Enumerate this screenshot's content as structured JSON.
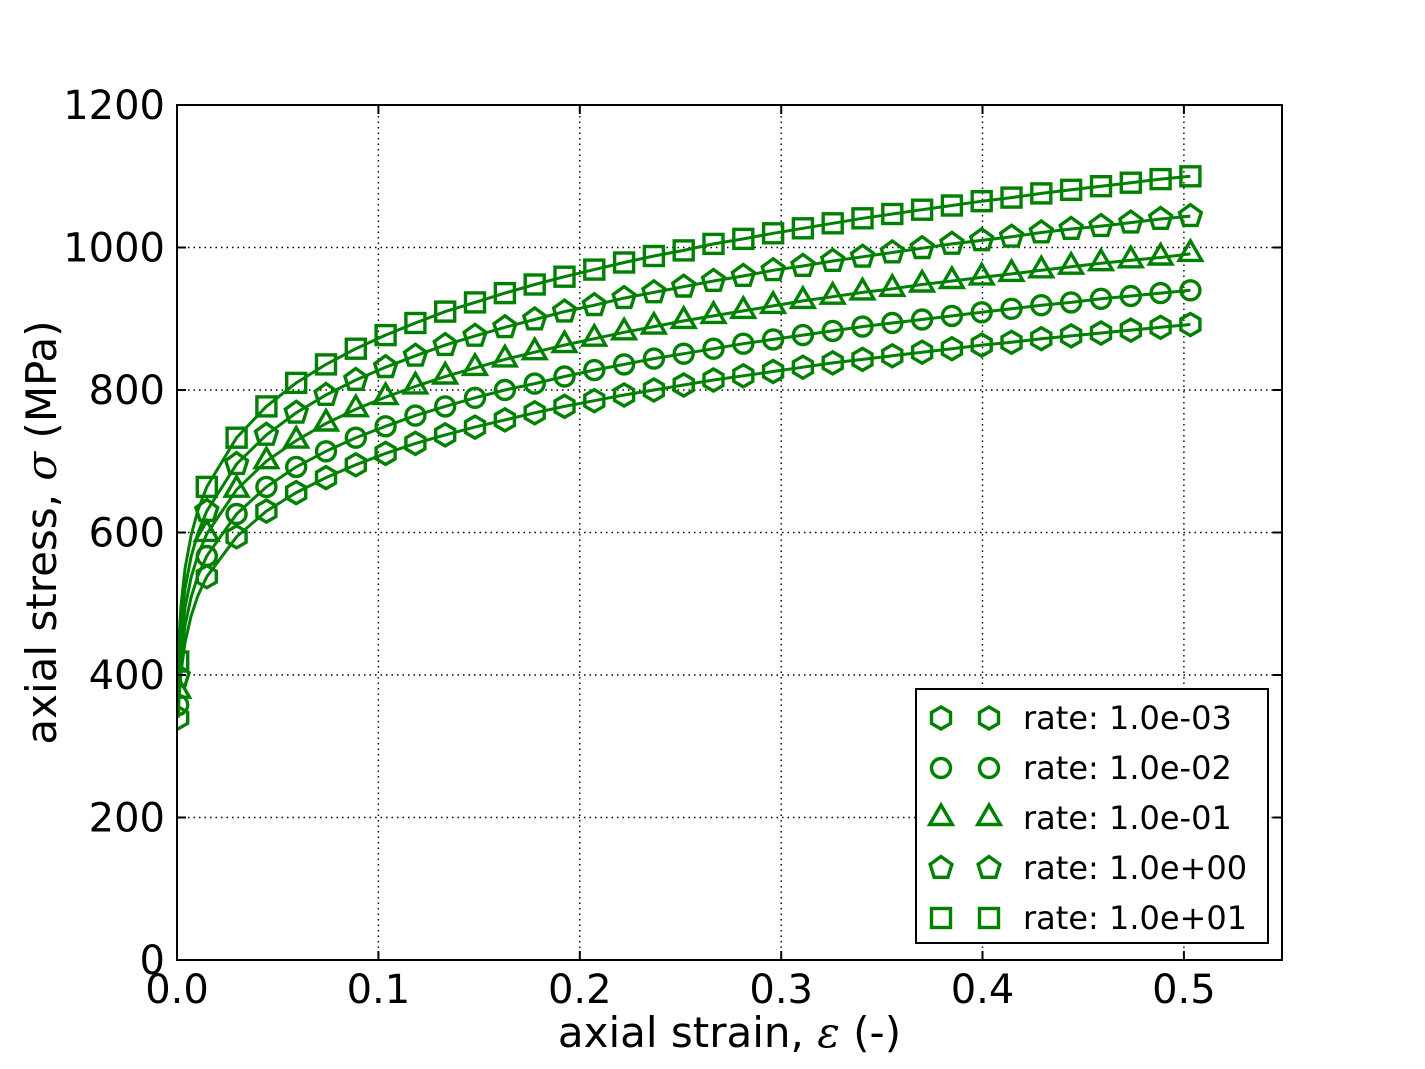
{
  "figure": {
    "background": "#ffffff",
    "series_color": "#008000",
    "text_color": "#000000",
    "axes": {
      "xlabel": {
        "prefix": "axial strain, ",
        "symbol": "ε",
        "suffix": " (-)"
      },
      "ylabel": {
        "prefix": "axial stress, ",
        "symbol": "σ",
        "suffix": " (MPa)"
      },
      "xlim": [
        0,
        0.5487
      ],
      "ylim": [
        0,
        1200
      ],
      "xticks": [
        0,
        0.1,
        0.2,
        0.3,
        0.4,
        0.5
      ],
      "xtick_labels": [
        "0.0",
        "0.1",
        "0.2",
        "0.3",
        "0.4",
        "0.5"
      ],
      "yticks": [
        0,
        200,
        400,
        600,
        800,
        1000,
        1200
      ],
      "ytick_labels": [
        "0",
        "200",
        "400",
        "600",
        "800",
        "1000",
        "1200"
      ],
      "grid_style": "dotted"
    },
    "legend": {
      "position": "lower right",
      "entries": [
        {
          "marker": "hexagon",
          "label": "rate: 1.0e-03"
        },
        {
          "marker": "circle",
          "label": "rate: 1.0e-02"
        },
        {
          "marker": "triangle",
          "label": "rate: 1.0e-01"
        },
        {
          "marker": "pentagon",
          "label": "rate: 1.0e+00"
        },
        {
          "marker": "square",
          "label": "rate: 1.0e+01"
        }
      ]
    }
  },
  "chart_data": {
    "type": "line",
    "title": "",
    "xlabel": "axial strain, ε (-)",
    "ylabel": "axial stress, σ (MPa)",
    "xlim": [
      0,
      0.5487
    ],
    "ylim": [
      0,
      1200
    ],
    "grid": true,
    "legend_position": "lower right",
    "x": [
      0.0006,
      0.0148,
      0.0296,
      0.0444,
      0.0592,
      0.074,
      0.0888,
      0.1036,
      0.1184,
      0.1332,
      0.148,
      0.1628,
      0.1776,
      0.1924,
      0.2072,
      0.222,
      0.2368,
      0.2516,
      0.2664,
      0.2812,
      0.296,
      0.3108,
      0.3256,
      0.3404,
      0.3552,
      0.37,
      0.3848,
      0.3996,
      0.4144,
      0.4292,
      0.444,
      0.4588,
      0.4736,
      0.4884,
      0.5032
    ],
    "rise_x": [
      0.001,
      0.002,
      0.004,
      0.007,
      0.0105
    ],
    "series": [
      {
        "name": "rate: 1.0e-03",
        "rate": 0.001,
        "marker": "hexagon",
        "rise_y": [
          366,
          404,
          446,
          483,
          512
        ],
        "y": [
          340,
          538,
          594,
          630,
          656,
          677,
          695,
          711,
          725,
          737,
          748,
          758,
          768,
          777,
          785,
          793,
          800,
          807,
          814,
          820,
          826,
          832,
          838,
          843,
          848,
          853,
          858,
          863,
          867,
          872,
          876,
          880,
          884,
          888,
          892
        ]
      },
      {
        "name": "rate: 1.0e-02",
        "rate": 0.01,
        "marker": "circle",
        "rise_y": [
          385,
          426,
          470,
          509,
          540
        ],
        "y": [
          358,
          567,
          626,
          664,
          692,
          714,
          733,
          749,
          764,
          777,
          789,
          800,
          809,
          819,
          828,
          836,
          844,
          851,
          858,
          865,
          871,
          877,
          883,
          889,
          894,
          899,
          904,
          909,
          914,
          919,
          923,
          928,
          932,
          936,
          940
        ]
      },
      {
        "name": "rate: 1.0e-01",
        "rate": 0.1,
        "marker": "triangle",
        "rise_y": [
          406,
          449,
          495,
          537,
          569
        ],
        "y": [
          378,
          598,
          660,
          700,
          729,
          753,
          773,
          790,
          805,
          819,
          831,
          843,
          853,
          863,
          872,
          881,
          889,
          897,
          904,
          911,
          918,
          925,
          931,
          937,
          942,
          948,
          953,
          958,
          963,
          968,
          973,
          978,
          982,
          986,
          991
        ]
      },
      {
        "name": "rate: 1.0e+00",
        "rate": 1.0,
        "marker": "pentagon",
        "rise_y": [
          428,
          473,
          522,
          566,
          600
        ],
        "y": [
          398,
          630,
          696,
          737,
          768,
          793,
          814,
          832,
          848,
          863,
          876,
          888,
          899,
          910,
          919,
          929,
          937,
          945,
          953,
          960,
          968,
          974,
          981,
          987,
          993,
          999,
          1005,
          1010,
          1015,
          1021,
          1026,
          1030,
          1035,
          1040,
          1044
        ]
      },
      {
        "name": "rate: 1.0e+01",
        "rate": 10.0,
        "marker": "square",
        "rise_y": [
          451,
          498,
          550,
          596,
          632
        ],
        "y": [
          419,
          664,
          733,
          777,
          810,
          836,
          858,
          877,
          894,
          910,
          923,
          936,
          948,
          959,
          969,
          979,
          988,
          996,
          1005,
          1012,
          1020,
          1027,
          1034,
          1041,
          1047,
          1053,
          1059,
          1065,
          1070,
          1076,
          1081,
          1086,
          1091,
          1096,
          1100
        ]
      }
    ]
  }
}
